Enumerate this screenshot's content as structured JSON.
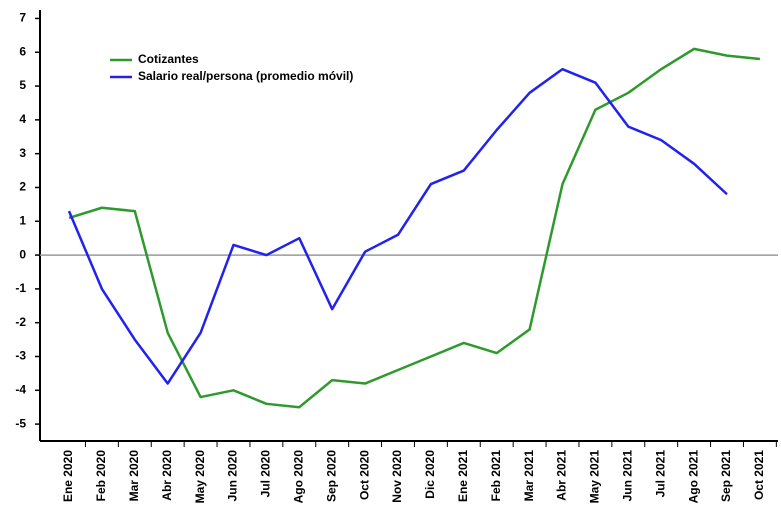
{
  "chart_data": {
    "type": "line",
    "categories": [
      "Ene 2020",
      "Feb 2020",
      "Mar 2020",
      "Abr 2020",
      "May 2020",
      "Jun 2020",
      "Jul 2020",
      "Ago 2020",
      "Sep 2020",
      "Oct 2020",
      "Nov 2020",
      "Dic 2020",
      "Ene 2021",
      "Feb 2021",
      "Mar 2021",
      "Abr 2021",
      "May 2021",
      "Jun 2021",
      "Jul 2021",
      "Ago 2021",
      "Sep 2021",
      "Oct 2021"
    ],
    "series": [
      {
        "name": "Cotizantes",
        "color": "#2e9a2e",
        "values": [
          1.1,
          1.4,
          1.3,
          -2.3,
          -4.2,
          -4.0,
          -4.4,
          -4.5,
          -3.7,
          -3.8,
          -3.4,
          -3.0,
          -2.6,
          -2.9,
          -2.2,
          2.1,
          4.3,
          4.8,
          5.5,
          6.1,
          5.9,
          5.8
        ]
      },
      {
        "name": "Salario real/persona (promedio móvil)",
        "color": "#2222ee",
        "values": [
          1.3,
          -1.0,
          -2.5,
          -3.8,
          -2.3,
          0.3,
          0.0,
          0.5,
          -1.6,
          0.1,
          0.6,
          2.1,
          2.5,
          3.7,
          4.8,
          5.5,
          5.1,
          3.8,
          3.4,
          2.7,
          1.8,
          null
        ]
      }
    ],
    "ylim": [
      -5.5,
      7.25
    ],
    "yticks": [
      -5,
      -4,
      -3,
      -2,
      -1,
      0,
      1,
      2,
      3,
      4,
      5,
      6,
      7
    ],
    "legend": "upper left"
  }
}
